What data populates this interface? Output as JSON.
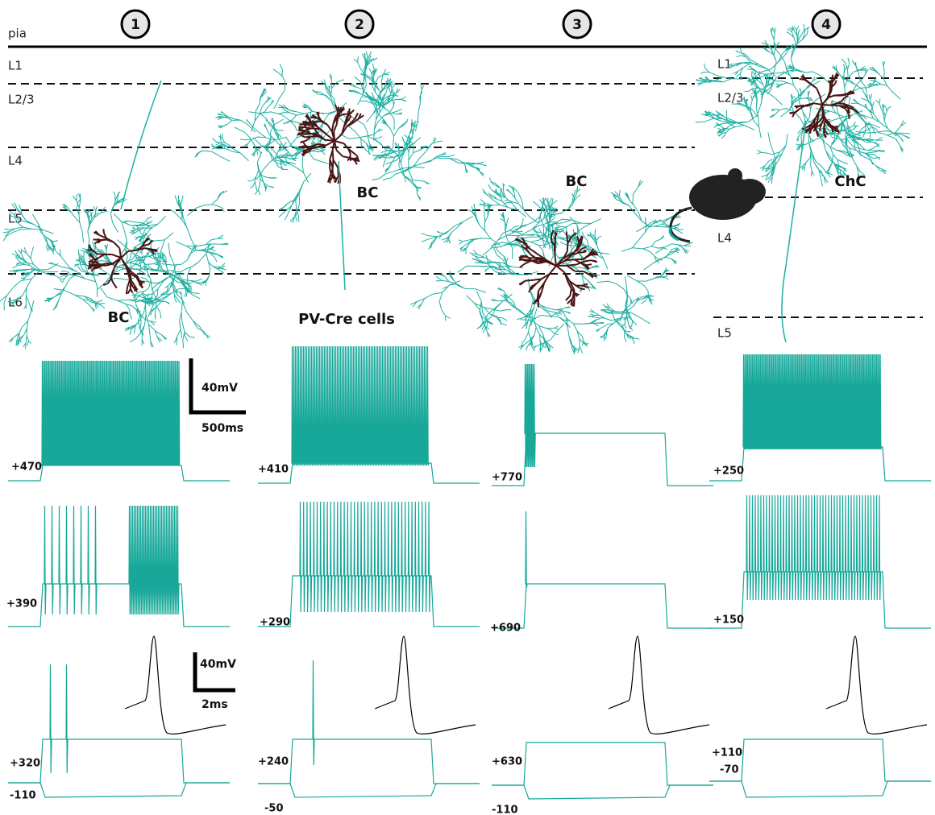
{
  "header": {
    "pia": "pia",
    "columns": [
      "1",
      "2",
      "3",
      "4"
    ]
  },
  "layers_left": [
    "L1",
    "L2/3",
    "L4",
    "L5",
    "L6"
  ],
  "layers_right": [
    "L1",
    "L2/3",
    "L4",
    "L5"
  ],
  "cells": [
    "BC",
    "BC",
    "BC",
    "ChC"
  ],
  "group_label": "PV-Cre cells",
  "scale_bars": {
    "long": {
      "voltage": "40mV",
      "time": "500ms"
    },
    "short": {
      "voltage": "40mV",
      "time": "2ms"
    }
  },
  "traces": [
    {
      "row1": "+470",
      "row2": "+390",
      "row3": "+320",
      "hyper": "-110"
    },
    {
      "row1": "+410",
      "row2": "+290",
      "row3": "+240",
      "hyper": "-50"
    },
    {
      "row1": "+770",
      "row2": "+690",
      "row3": "+630",
      "hyper": "-110"
    },
    {
      "row1": "+250",
      "row2": "+150",
      "row3": "+110",
      "hyper": "-70"
    }
  ]
}
